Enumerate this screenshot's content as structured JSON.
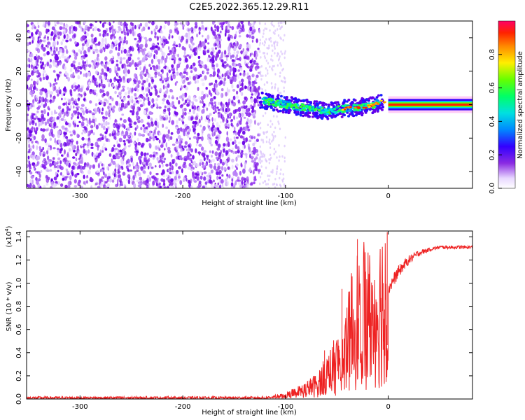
{
  "title": "C2E5.2022.365.12.29.R11",
  "chart_data": [
    {
      "type": "heatmap",
      "xlabel": "Height of straight line (km)",
      "ylabel": "Frequency (Hz)",
      "xlim": [
        -352,
        82
      ],
      "ylim": [
        -50,
        50
      ],
      "xticks": [
        -300,
        -200,
        -100,
        0
      ],
      "yticks": [
        -40,
        -20,
        0,
        20,
        40
      ],
      "colorbar": {
        "label": "Normalized spectral amplitude",
        "ticks": [
          "0.0",
          "0.2",
          "0.4",
          "0.6",
          "0.8"
        ],
        "range": [
          0,
          1
        ]
      },
      "ridge": [
        [
          -125,
          3
        ],
        [
          -100,
          0
        ],
        [
          -80,
          -2
        ],
        [
          -60,
          -4
        ],
        [
          -40,
          -2
        ],
        [
          -20,
          -1
        ],
        [
          -5,
          2
        ],
        [
          0,
          0
        ],
        [
          82,
          0
        ]
      ]
    },
    {
      "type": "line",
      "xlabel": "Height of straight line (km)",
      "ylabel": "SNR (10 * v/v)",
      "yscale_label": "(x10",
      "yscale_exp": "4",
      "xlim": [
        -352,
        82
      ],
      "ylim": [
        0,
        1.45
      ],
      "xticks": [
        -300,
        -200,
        -100,
        0
      ],
      "yticks": [
        "0.0",
        "0.2",
        "0.4",
        "0.6",
        "0.8",
        "1.0",
        "1.2",
        "1.4"
      ],
      "color": "#ee2222",
      "series": [
        {
          "x": [
            -352,
            -300,
            -200,
            -120,
            -100,
            -80,
            -70,
            -60,
            -50,
            -40,
            -35,
            -30,
            -25,
            -20,
            -15,
            -10,
            -5,
            0,
            10,
            20,
            30,
            40,
            50,
            60,
            70,
            82
          ],
          "y": [
            0.01,
            0.01,
            0.01,
            0.01,
            0.03,
            0.08,
            0.12,
            0.2,
            0.3,
            0.45,
            0.6,
            0.7,
            0.8,
            0.72,
            0.7,
            0.75,
            0.85,
            0.95,
            1.1,
            1.2,
            1.26,
            1.29,
            1.31,
            1.31,
            1.31,
            1.31
          ]
        }
      ],
      "spikes": [
        {
          "x": -62,
          "y": 0.42
        },
        {
          "x": -45,
          "y": 0.95
        },
        {
          "x": -30,
          "y": 1.38
        },
        {
          "x": -22,
          "y": 1.1
        },
        {
          "x": -5,
          "y": 1.0
        },
        {
          "x": -1,
          "y": 1.44
        }
      ]
    }
  ]
}
